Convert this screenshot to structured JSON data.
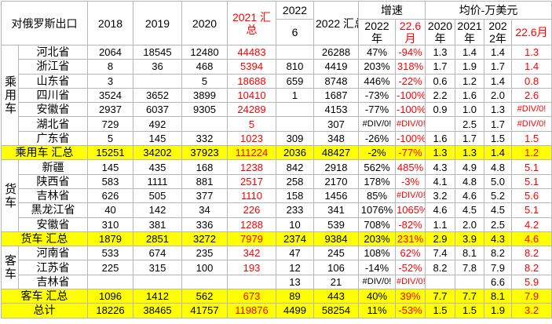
{
  "header": {
    "title": "对俄罗斯出口",
    "years": [
      "2018",
      "2019",
      "2020"
    ],
    "y2021": "2021 汇总",
    "y2022": "2022",
    "month": "6",
    "y2022total": "2022 汇总",
    "growth": "增速",
    "growth_cols": [
      "2022年",
      "22.6月"
    ],
    "price": "均价-万美元",
    "price_cols": [
      "2020年",
      "2021年",
      "2022年",
      "22.6月"
    ]
  },
  "groups": [
    {
      "label": "乘用车",
      "rows": [
        {
          "name": "河北省",
          "cells": [
            "2064",
            "18545",
            "12480",
            "44483",
            null,
            "26288",
            "47%",
            "-94%",
            "1.3",
            "1.4",
            "1.4",
            "1.3"
          ]
        },
        {
          "name": "浙江省",
          "cells": [
            "8",
            "36",
            "468",
            "5394",
            "810",
            "4419",
            "203%",
            "318%",
            "1.7",
            "1.9",
            "1.7",
            "1.4"
          ]
        },
        {
          "name": "山东省",
          "cells": [
            "3",
            null,
            "5",
            "18688",
            "659",
            "8748",
            "446%",
            "-22%",
            "0.6",
            "1.2",
            "1.4",
            "0.8"
          ]
        },
        {
          "name": "四川省",
          "cells": [
            "3524",
            "3652",
            "3899",
            "10410",
            "1",
            "1687",
            "-73%",
            "-100%",
            "2.2",
            "1.6",
            "2.0",
            "2.6"
          ]
        },
        {
          "name": "安徽省",
          "cells": [
            "2937",
            "6037",
            "9305",
            "24289",
            null,
            "4153",
            "-77%",
            "-100%",
            "0.9",
            "1.0",
            "1.3",
            "#DIV/0!"
          ]
        },
        {
          "name": "湖北省",
          "cells": [
            "729",
            "492",
            null,
            "5",
            null,
            "307",
            "#DIV/0!",
            "#DIV/0!",
            null,
            "2.5",
            "1.7",
            "#DIV/0!"
          ]
        },
        {
          "name": "广东省",
          "cells": [
            "5",
            "145",
            "332",
            "1023",
            "309",
            "348",
            "-26%",
            "-100%",
            "1.6",
            "1.7",
            "1.5",
            "1.5"
          ]
        }
      ],
      "subtotal": {
        "label": "乘用车 汇总",
        "cells": [
          "15251",
          "34202",
          "37923",
          "111224",
          "2036",
          "48427",
          "-2%",
          "-77%",
          "1.3",
          "1.3",
          "1.4",
          "1.2"
        ]
      }
    },
    {
      "label": "货车",
      "rows": [
        {
          "name": "新疆",
          "cells": [
            "145",
            "435",
            "168",
            "1238",
            "842",
            "2918",
            "562%",
            "485%",
            "4.3",
            "4.9",
            "4.8",
            "5.1"
          ]
        },
        {
          "name": "陕西省",
          "cells": [
            "583",
            "1111",
            "881",
            "2517",
            "258",
            "2170",
            "178%",
            "-3%",
            "4.1",
            "4.8",
            "5.0",
            "5.1"
          ]
        },
        {
          "name": "吉林省",
          "cells": [
            "626",
            "505",
            "377",
            "1110",
            "158",
            "1456",
            "85%",
            "#DIV/0!",
            "3.2",
            "4.6",
            "5.2",
            "5.6"
          ]
        },
        {
          "name": "黑龙江省",
          "cells": [
            "40",
            "142",
            "34",
            "226",
            "233",
            "341",
            "1076%",
            "1065%",
            "4.6",
            "4.5",
            "4.5",
            "5.1"
          ]
        },
        {
          "name": "安徽省",
          "cells": [
            "310",
            "381",
            "336",
            "1288",
            "10",
            "539",
            "708%",
            "-82%",
            "1.1",
            "2.0",
            "2.5",
            "4.2"
          ]
        }
      ],
      "subtotal": {
        "label": "货车 汇总",
        "cells": [
          "1879",
          "2851",
          "3272",
          "7979",
          "2374",
          "9384",
          "203%",
          "231%",
          "2.9",
          "3.9",
          "4.3",
          "4.6"
        ]
      }
    },
    {
      "label": "客车",
      "rows": [
        {
          "name": "河南省",
          "cells": [
            "533",
            "674",
            "235",
            "342",
            "47",
            "245",
            "108%",
            "62%",
            "7.4",
            "8.1",
            "8.2",
            "8.2"
          ]
        },
        {
          "name": "江苏省",
          "cells": [
            "225",
            "315",
            "100",
            "193",
            "12",
            "106",
            "-14%",
            "-52%",
            "8.2",
            "7.8",
            "7.9",
            "8.2"
          ]
        },
        {
          "name": "吉林省",
          "cells": [
            null,
            null,
            null,
            null,
            "13",
            "21",
            "#DIV/0!",
            "#DIV/0!",
            null,
            null,
            "6.6",
            "5.9"
          ]
        }
      ],
      "subtotal": {
        "label": "客车 汇总",
        "cells": [
          "1096",
          "1412",
          "562",
          "673",
          "89",
          "443",
          "40%",
          "39%",
          "7.7",
          "7.7",
          "8.1",
          "7.9"
        ]
      }
    }
  ],
  "total": {
    "label": "总计",
    "cells": [
      "18226",
      "38465",
      "41757",
      "119876",
      "4499",
      "58254",
      "11%",
      "-53%",
      "1.5",
      "1.5",
      "1.9",
      "3.2"
    ]
  }
}
